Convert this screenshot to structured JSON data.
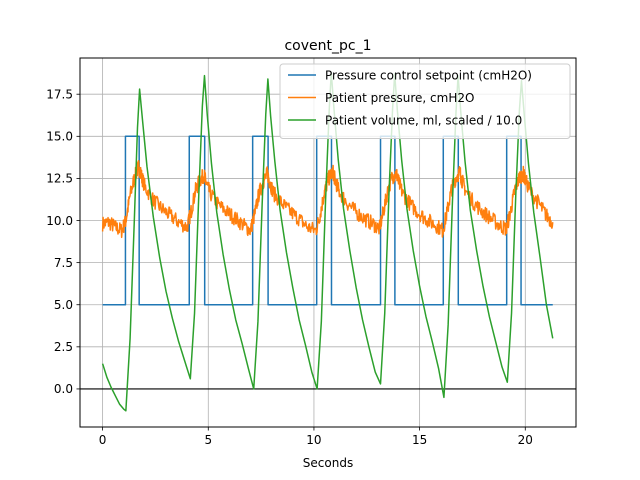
{
  "chart_data": {
    "type": "line",
    "title": "covent_pc_1",
    "xlabel": "Seconds",
    "ylabel": "",
    "xlim": [
      -1.07,
      22.4
    ],
    "ylim": [
      -2.26,
      19.65
    ],
    "x_ticks": [
      0,
      5,
      10,
      15,
      20
    ],
    "x_tick_labels": [
      "0",
      "5",
      "10",
      "15",
      "20"
    ],
    "y_ticks": [
      0.0,
      2.5,
      5.0,
      7.5,
      10.0,
      12.5,
      15.0,
      17.5
    ],
    "y_tick_labels": [
      "0.0",
      "2.5",
      "5.0",
      "7.5",
      "10.0",
      "12.5",
      "15.0",
      "17.5"
    ],
    "grid": true,
    "legend_position": "top-right",
    "zero_line": true,
    "breath_period_s": 3.0,
    "series": [
      {
        "name": "Pressure control setpoint (cmH2O)",
        "color": "#1f77b4",
        "style": "step",
        "x": [
          0,
          1.08,
          1.08,
          1.73,
          1.73,
          4.1,
          4.1,
          4.83,
          4.83,
          7.1,
          7.1,
          7.83,
          7.83,
          10.13,
          10.13,
          10.83,
          10.83,
          13.15,
          13.15,
          13.83,
          13.83,
          16.12,
          16.12,
          16.83,
          16.83,
          19.12,
          19.12,
          19.8,
          19.8,
          21.3
        ],
        "y": [
          5,
          5,
          15,
          15,
          5,
          5,
          15,
          15,
          5,
          5,
          15,
          15,
          5,
          5,
          15,
          15,
          5,
          5,
          15,
          15,
          5,
          5,
          15,
          15,
          5,
          5,
          15,
          15,
          5,
          5
        ]
      },
      {
        "name": "Patient pressure, cmH2O",
        "color": "#ff7f0e",
        "style": "noisy",
        "x": [
          0,
          0.3,
          0.6,
          0.9,
          1.1,
          1.3,
          1.5,
          1.7,
          1.8,
          2.0,
          2.4,
          2.8,
          3.2,
          3.6,
          4.0,
          4.2,
          4.4,
          4.6,
          4.8,
          4.9,
          5.1,
          5.5,
          5.9,
          6.3,
          6.7,
          7.0,
          7.2,
          7.4,
          7.6,
          7.8,
          7.9,
          8.1,
          8.5,
          8.9,
          9.3,
          9.7,
          10.1,
          10.3,
          10.5,
          10.7,
          10.9,
          11.0,
          11.2,
          11.6,
          12.0,
          12.4,
          12.8,
          13.1,
          13.3,
          13.5,
          13.7,
          13.9,
          14.0,
          14.2,
          14.6,
          15.0,
          15.4,
          15.8,
          16.1,
          16.3,
          16.5,
          16.7,
          16.9,
          17.0,
          17.2,
          17.6,
          18.0,
          18.4,
          18.8,
          19.1,
          19.3,
          19.5,
          19.7,
          19.9,
          20.0,
          20.3,
          20.7,
          21.0,
          21.3
        ],
        "y": [
          9.8,
          9.9,
          9.6,
          9.4,
          10.0,
          11.5,
          12.5,
          13.2,
          12.8,
          12.0,
          11.2,
          10.7,
          10.3,
          9.9,
          9.6,
          10.6,
          11.8,
          12.4,
          12.7,
          12.2,
          11.6,
          10.9,
          10.5,
          10.1,
          9.7,
          9.4,
          10.4,
          11.6,
          12.3,
          12.8,
          12.3,
          11.6,
          11.0,
          10.5,
          10.1,
          9.6,
          9.4,
          10.4,
          11.7,
          12.5,
          12.9,
          12.4,
          11.7,
          11.0,
          10.5,
          10.1,
          9.8,
          9.5,
          10.6,
          11.8,
          12.6,
          12.8,
          12.3,
          11.6,
          10.9,
          10.4,
          10.0,
          9.7,
          9.4,
          10.5,
          11.8,
          12.5,
          12.9,
          12.4,
          11.7,
          11.0,
          10.5,
          10.1,
          9.7,
          9.5,
          10.5,
          11.8,
          12.5,
          12.8,
          12.4,
          11.6,
          10.9,
          10.3,
          9.9
        ]
      },
      {
        "name": "Patient volume, ml, scaled / 10.0",
        "color": "#2ca02c",
        "style": "line",
        "x": [
          0,
          0.2,
          0.4,
          0.6,
          0.8,
          1.0,
          1.1,
          1.3,
          1.5,
          1.65,
          1.75,
          1.9,
          2.1,
          2.4,
          2.7,
          3.0,
          3.3,
          3.6,
          3.9,
          4.15,
          4.35,
          4.55,
          4.72,
          4.82,
          4.95,
          5.15,
          5.4,
          5.7,
          6.0,
          6.3,
          6.6,
          6.9,
          7.15,
          7.35,
          7.55,
          7.72,
          7.82,
          7.95,
          8.15,
          8.4,
          8.7,
          9.0,
          9.3,
          9.6,
          9.9,
          10.15,
          10.35,
          10.55,
          10.72,
          10.82,
          10.95,
          11.15,
          11.4,
          11.7,
          12.0,
          12.3,
          12.6,
          12.9,
          13.15,
          13.35,
          13.55,
          13.72,
          13.82,
          13.95,
          14.15,
          14.4,
          14.7,
          15.0,
          15.3,
          15.6,
          15.9,
          16.15,
          16.35,
          16.55,
          16.72,
          16.82,
          16.95,
          17.15,
          17.4,
          17.7,
          18.0,
          18.3,
          18.6,
          18.9,
          19.15,
          19.35,
          19.55,
          19.72,
          19.82,
          19.95,
          20.15,
          20.4,
          20.7,
          21.0,
          21.3
        ],
        "y": [
          1.5,
          0.7,
          0.1,
          -0.4,
          -0.9,
          -1.2,
          -1.3,
          3.0,
          10.0,
          15.5,
          17.8,
          15.8,
          13.2,
          10.2,
          7.8,
          5.8,
          4.2,
          2.8,
          1.6,
          0.6,
          4.5,
          11.5,
          16.8,
          18.6,
          16.3,
          13.4,
          10.5,
          8.0,
          5.9,
          4.1,
          2.7,
          1.2,
          0.0,
          4.0,
          11.0,
          16.3,
          18.4,
          16.2,
          13.5,
          10.6,
          8.1,
          6.0,
          4.1,
          2.6,
          1.0,
          0.0,
          4.0,
          11.2,
          16.5,
          18.8,
          16.6,
          13.6,
          10.7,
          8.2,
          6.0,
          4.1,
          2.5,
          1.0,
          0.3,
          4.5,
          11.6,
          16.6,
          18.7,
          16.5,
          13.6,
          10.7,
          8.2,
          6.1,
          4.3,
          2.8,
          1.2,
          -0.5,
          3.8,
          11.0,
          16.4,
          18.6,
          16.4,
          13.5,
          10.6,
          8.2,
          6.1,
          4.3,
          2.8,
          1.3,
          0.4,
          4.5,
          11.5,
          16.5,
          18.3,
          16.3,
          13.4,
          10.5,
          7.8,
          5.0,
          3.0
        ]
      }
    ]
  }
}
